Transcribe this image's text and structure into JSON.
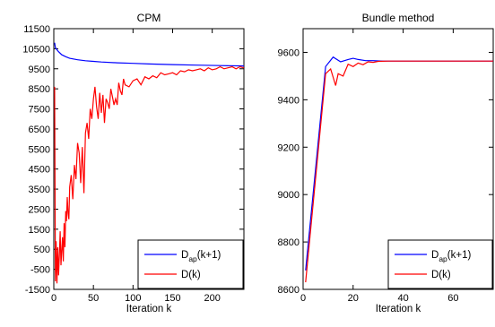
{
  "chart_data": [
    {
      "type": "line",
      "title": "CPM",
      "xlabel": "Iteration k",
      "ylabel": "",
      "xlim": [
        0,
        240
      ],
      "ylim": [
        -1500,
        11500
      ],
      "xticks": [
        0,
        50,
        100,
        150,
        200
      ],
      "yticks": [
        -1500,
        -500,
        500,
        1500,
        2500,
        3500,
        4500,
        5500,
        6500,
        7500,
        8500,
        9500,
        10500,
        11500
      ],
      "legend_position": "bottom-right",
      "series": [
        {
          "name": "D_ap(k+1)",
          "legend_main": "D",
          "legend_sub": "ap",
          "legend_suffix": "(k+1)",
          "color": "#0000ff",
          "x": [
            1,
            2,
            4,
            6,
            10,
            15,
            20,
            30,
            40,
            50,
            60,
            80,
            100,
            120,
            150,
            180,
            210,
            240
          ],
          "y": [
            10800,
            10550,
            10450,
            10350,
            10200,
            10100,
            10020,
            9950,
            9900,
            9870,
            9840,
            9800,
            9770,
            9740,
            9710,
            9680,
            9660,
            9640
          ]
        },
        {
          "name": "D(k)",
          "color": "#ff0000",
          "x": [
            1,
            2,
            3,
            4,
            5,
            6,
            7,
            8,
            9,
            10,
            11,
            12,
            13,
            14,
            15,
            16,
            17,
            18,
            19,
            20,
            22,
            24,
            26,
            28,
            30,
            32,
            34,
            36,
            38,
            40,
            42,
            44,
            46,
            48,
            50,
            52,
            54,
            56,
            58,
            60,
            62,
            64,
            66,
            68,
            70,
            72,
            74,
            76,
            78,
            80,
            82,
            84,
            86,
            88,
            90,
            95,
            100,
            105,
            110,
            115,
            120,
            125,
            130,
            135,
            140,
            145,
            150,
            155,
            160,
            165,
            170,
            175,
            180,
            185,
            190,
            195,
            200,
            205,
            210,
            215,
            220,
            225,
            230,
            235,
            240
          ],
          "y": [
            8600,
            -1100,
            900,
            -1200,
            600,
            -800,
            200,
            1400,
            -300,
            400,
            1100,
            -100,
            1800,
            600,
            2400,
            1900,
            3100,
            2300,
            2000,
            3600,
            4200,
            3000,
            4700,
            4000,
            5800,
            5300,
            3800,
            5600,
            3300,
            6300,
            6800,
            6000,
            7500,
            7000,
            8000,
            8600,
            7600,
            7000,
            8300,
            7300,
            8200,
            6800,
            8000,
            7800,
            7500,
            8500,
            8100,
            7700,
            8000,
            7700,
            8800,
            8400,
            8200,
            9000,
            8700,
            8600,
            8900,
            9000,
            8700,
            9100,
            9000,
            9150,
            9050,
            9300,
            9200,
            9250,
            9300,
            9200,
            9400,
            9350,
            9450,
            9400,
            9450,
            9500,
            9400,
            9550,
            9450,
            9500,
            9600,
            9500,
            9550,
            9600,
            9500,
            9600,
            9550
          ]
        }
      ]
    },
    {
      "type": "line",
      "title": "Bundle method",
      "xlabel": "Iteration k",
      "ylabel": "",
      "xlim": [
        0,
        76
      ],
      "ylim": [
        8600,
        9700
      ],
      "xticks": [
        0,
        20,
        40,
        60
      ],
      "yticks": [
        8600,
        8800,
        9000,
        9200,
        9400,
        9600
      ],
      "legend_position": "bottom-right",
      "series": [
        {
          "name": "D_ap(k+1)",
          "legend_main": "D",
          "legend_sub": "ap",
          "legend_suffix": "(k+1)",
          "color": "#0000ff",
          "x": [
            1,
            9,
            12,
            15,
            18,
            20,
            22,
            25,
            28,
            32,
            40,
            50,
            60,
            76
          ],
          "y": [
            8680,
            9540,
            9580,
            9560,
            9570,
            9575,
            9570,
            9565,
            9565,
            9563,
            9563,
            9563,
            9563,
            9563
          ]
        },
        {
          "name": "D(k)",
          "color": "#ff0000",
          "x": [
            1,
            9,
            11,
            13,
            14,
            16,
            18,
            20,
            22,
            24,
            26,
            28,
            30,
            34,
            40,
            50,
            60,
            76
          ],
          "y": [
            8630,
            9510,
            9530,
            9460,
            9510,
            9500,
            9550,
            9540,
            9555,
            9548,
            9560,
            9558,
            9562,
            9563,
            9563,
            9563,
            9563,
            9563
          ]
        }
      ]
    }
  ]
}
